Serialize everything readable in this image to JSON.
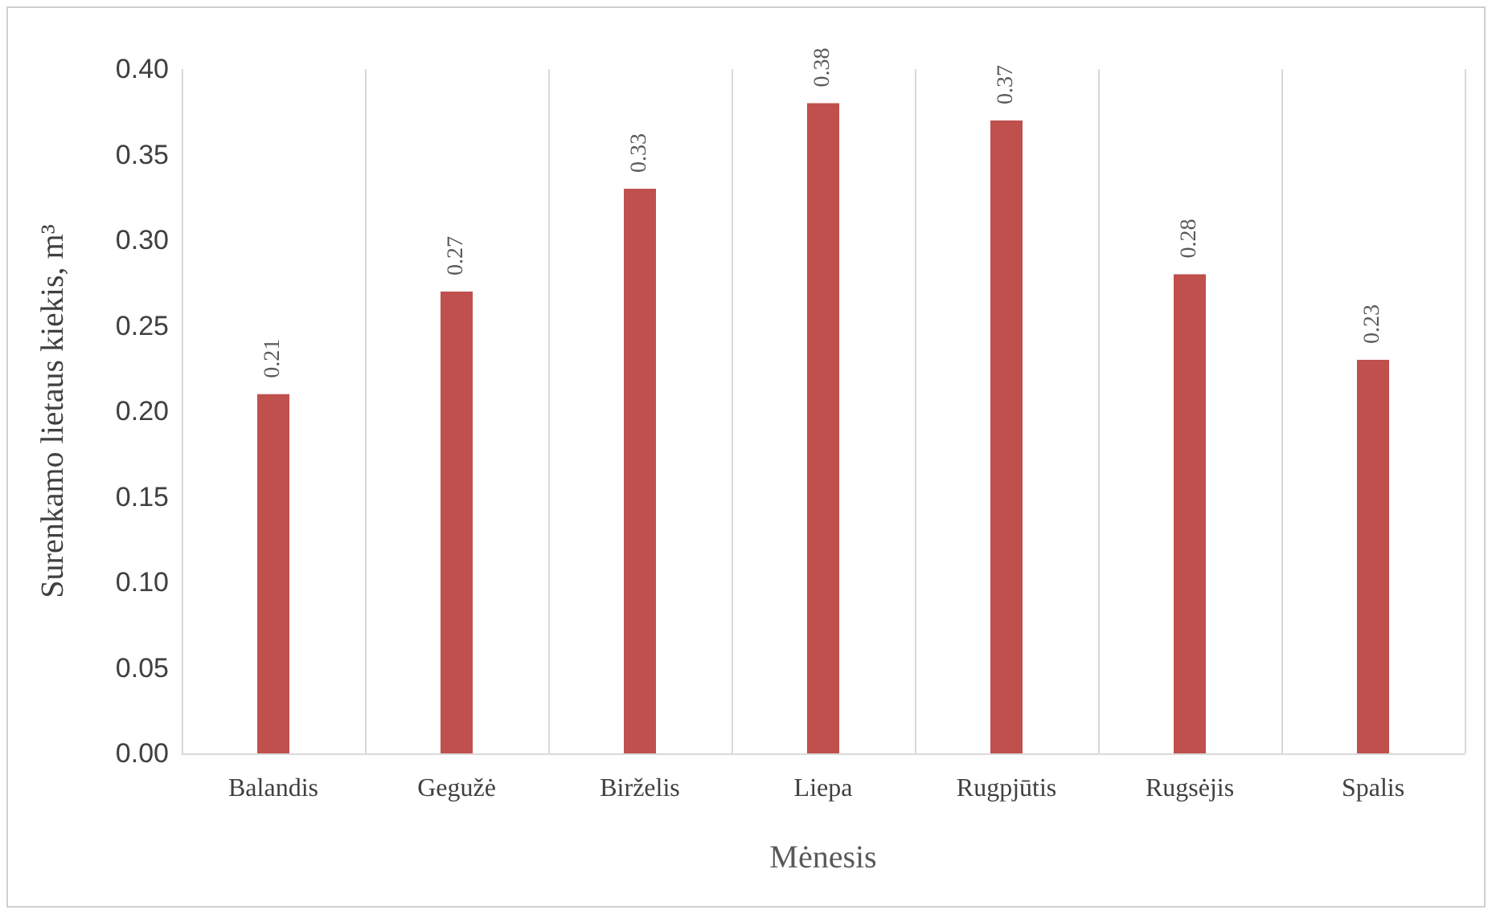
{
  "chart_data": {
    "type": "bar",
    "xlabel": "Mėnesis",
    "ylabel": "Surenkamo lietaus kiekis, m³",
    "categories": [
      "Balandis",
      "Gegužė",
      "Birželis",
      "Liepa",
      "Rugpjūtis",
      "Rugsėjis",
      "Spalis"
    ],
    "values": [
      0.21,
      0.27,
      0.33,
      0.38,
      0.37,
      0.28,
      0.23
    ],
    "color": "#c0504d",
    "ylim": [
      0,
      0.4
    ],
    "yticks": [
      {
        "value": 0,
        "label": "0.00"
      },
      {
        "value": 0.05,
        "label": "0.05"
      },
      {
        "value": 0.1,
        "label": "0.10"
      },
      {
        "value": 0.15,
        "label": "0.15"
      },
      {
        "value": 0.2,
        "label": "0.20"
      },
      {
        "value": 0.25,
        "label": "0.25"
      },
      {
        "value": 0.3,
        "label": "0.30"
      },
      {
        "value": 0.35,
        "label": "0.35"
      },
      {
        "value": 0.4,
        "label": "0.40"
      }
    ],
    "grid": "x",
    "data_labels": true
  }
}
